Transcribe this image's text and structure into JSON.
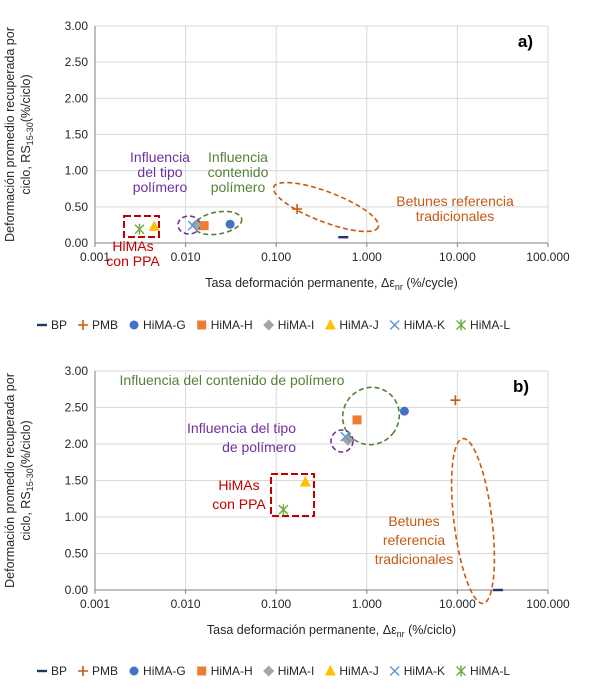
{
  "series_styles": [
    {
      "name": "BP",
      "marker": "dash",
      "color": "#1f3864"
    },
    {
      "name": "PMB",
      "marker": "plus",
      "color": "#c55a11"
    },
    {
      "name": "HiMA-G",
      "marker": "circle",
      "color": "#4472c4"
    },
    {
      "name": "HiMA-H",
      "marker": "square",
      "color": "#ed7d31"
    },
    {
      "name": "HiMA-I",
      "marker": "diamond",
      "color": "#a5a5a5"
    },
    {
      "name": "HiMA-J",
      "marker": "triangle",
      "color": "#ffc000"
    },
    {
      "name": "HiMA-K",
      "marker": "x",
      "color": "#5b9bd5"
    },
    {
      "name": "HiMA-L",
      "marker": "star",
      "color": "#70ad47"
    }
  ],
  "chart_data": [
    {
      "type": "scatter",
      "panel_label": "a)",
      "xscale": "log",
      "xlim": [
        0.001,
        100
      ],
      "ylim": [
        0,
        3
      ],
      "xticks": [
        "0.001",
        "0.010",
        "0.100",
        "1.000",
        "10.000",
        "100.000"
      ],
      "yticks": [
        "0.00",
        "0.50",
        "1.00",
        "1.50",
        "2.00",
        "2.50",
        "3.00"
      ],
      "xlabel": "Tasa deformación permanente, Δε",
      "xlabel_sub": "nr",
      "xlabel_suffix": " (%/cycle)",
      "ylabel_line1": "Deformación promedio recuperada por",
      "ylabel_line2": "ciclo, RS",
      "ylabel_sub": "15-30",
      "ylabel_suffix": "(%/ciclo)",
      "grid": true,
      "legend": "bottom",
      "series": [
        {
          "name": "BP",
          "points": [
            [
              0.55,
              0.08
            ]
          ]
        },
        {
          "name": "PMB",
          "points": [
            [
              0.17,
              0.47
            ]
          ]
        },
        {
          "name": "HiMA-G",
          "points": [
            [
              0.031,
              0.26
            ]
          ]
        },
        {
          "name": "HiMA-H",
          "points": [
            [
              0.016,
              0.24
            ]
          ]
        },
        {
          "name": "HiMA-I",
          "points": [
            [
              0.013,
              0.25
            ]
          ]
        },
        {
          "name": "HiMA-J",
          "points": [
            [
              0.0045,
              0.23
            ]
          ]
        },
        {
          "name": "HiMA-K",
          "points": [
            [
              0.012,
              0.24
            ]
          ]
        },
        {
          "name": "HiMA-L",
          "points": [
            [
              0.0031,
              0.19
            ]
          ]
        }
      ],
      "annotations": [
        {
          "lines": [
            "Influencia",
            "del tipo",
            "polímero"
          ],
          "color": "#7030a0"
        },
        {
          "lines": [
            "Influencia",
            "contenido",
            "polímero"
          ],
          "color": "#548235"
        },
        {
          "lines": [
            "Betunes referencia",
            "tradicionales"
          ],
          "color": "#c55a11"
        },
        {
          "lines": [
            "HiMAs",
            "con PPA"
          ],
          "color": "#c00000"
        }
      ]
    },
    {
      "type": "scatter",
      "panel_label": "b)",
      "xscale": "log",
      "xlim": [
        0.001,
        100
      ],
      "ylim": [
        0,
        3
      ],
      "xticks": [
        "0.001",
        "0.010",
        "0.100",
        "1.000",
        "10.000",
        "100.000"
      ],
      "yticks": [
        "0.00",
        "0.50",
        "1.00",
        "1.50",
        "2.00",
        "2.50",
        "3.00"
      ],
      "xlabel": "Tasa deformación permanente, Δε",
      "xlabel_sub": "nr",
      "xlabel_suffix": " (%/ciclo)",
      "ylabel_line1": "Deformación promedio recuperada por",
      "ylabel_line2": "ciclo, RS",
      "ylabel_sub": "15-30",
      "ylabel_suffix": "(%/ciclo)",
      "grid": true,
      "legend": "bottom",
      "series": [
        {
          "name": "BP",
          "points": [
            [
              28,
              0.0
            ]
          ]
        },
        {
          "name": "PMB",
          "points": [
            [
              9.5,
              2.6
            ]
          ]
        },
        {
          "name": "HiMA-G",
          "points": [
            [
              2.6,
              2.45
            ]
          ]
        },
        {
          "name": "HiMA-H",
          "points": [
            [
              0.78,
              2.33
            ]
          ]
        },
        {
          "name": "HiMA-I",
          "points": [
            [
              0.62,
              2.05
            ]
          ]
        },
        {
          "name": "HiMA-J",
          "points": [
            [
              0.21,
              1.48
            ]
          ]
        },
        {
          "name": "HiMA-K",
          "points": [
            [
              0.58,
              2.1
            ]
          ]
        },
        {
          "name": "HiMA-L",
          "points": [
            [
              0.12,
              1.1
            ]
          ]
        }
      ],
      "annotations": [
        {
          "lines": [
            "Influencia del contenido de polímero"
          ],
          "color": "#548235"
        },
        {
          "lines": [
            "Influencia del tipo",
            "de polímero"
          ],
          "color": "#7030a0"
        },
        {
          "lines": [
            "HiMAs",
            "con PPA"
          ],
          "color": "#c00000"
        },
        {
          "lines": [
            "Betunes",
            "referencia",
            "tradicionales"
          ],
          "color": "#c55a11"
        }
      ]
    }
  ]
}
